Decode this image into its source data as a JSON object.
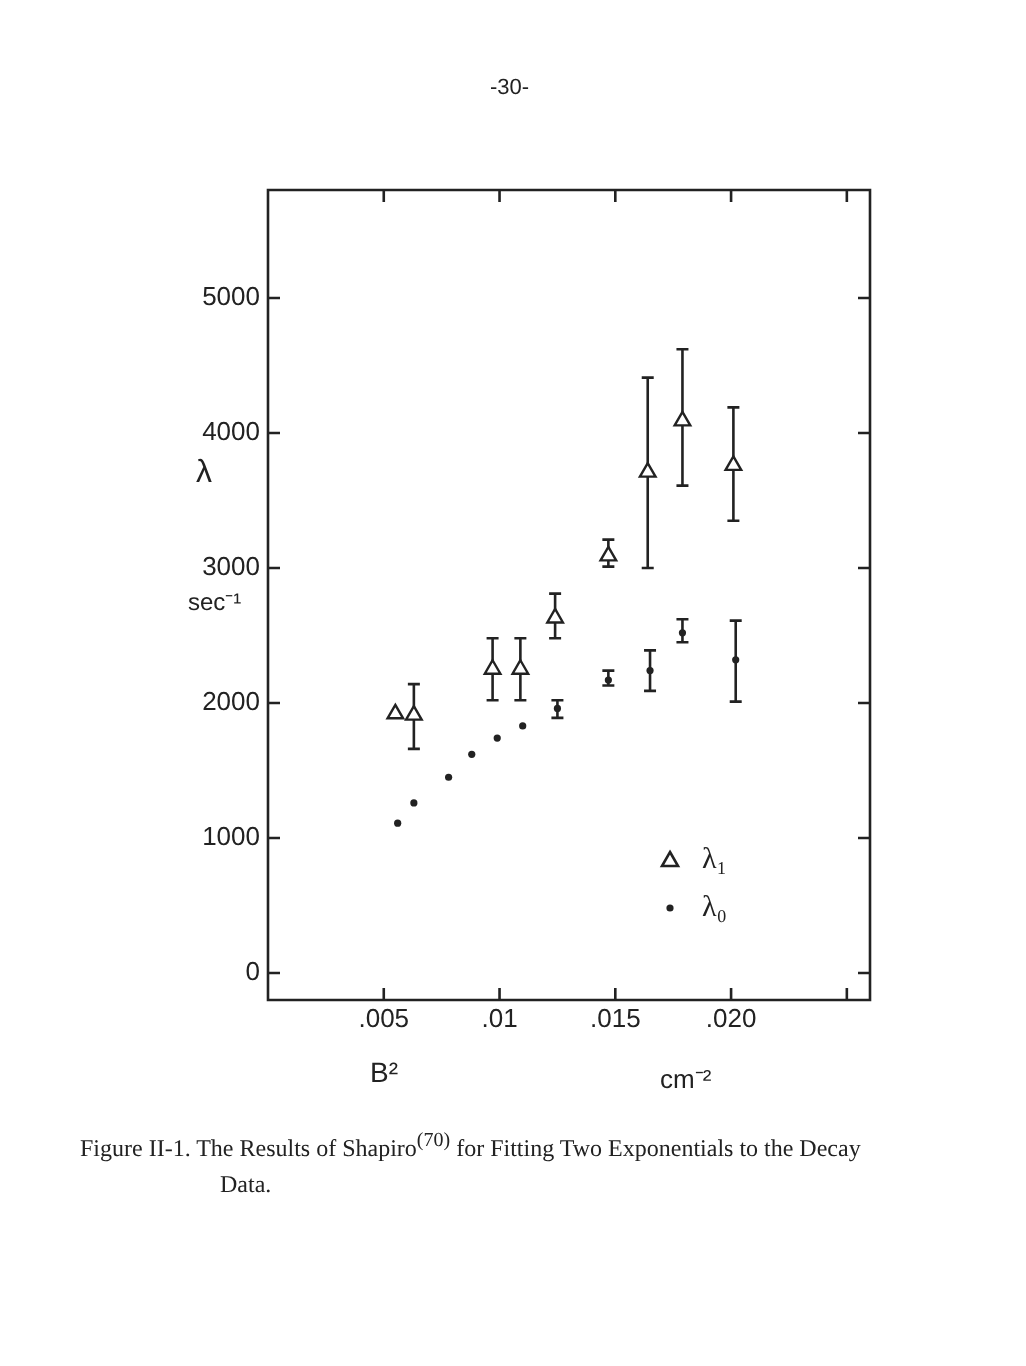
{
  "chart_data": {
    "type": "scatter",
    "xlabel": "B²",
    "ylabel": "λ",
    "annotations": [
      "-30-",
      "sec⁻¹",
      "cm⁻²",
      "Figure II-1.  The Results of Shapiro$^{(70)}$ for Fitting Two Exponentials to the Decay Data."
    ],
    "xlim": [
      0,
      0.026
    ],
    "ylim": [
      -200,
      5800
    ],
    "xticks": [
      {
        "value": 0.005,
        "label": ".005"
      },
      {
        "value": 0.01,
        "label": ".01"
      },
      {
        "value": 0.015,
        "label": ".015"
      },
      {
        "value": 0.02,
        "label": ".020"
      },
      {
        "value": 0.025,
        "label": null
      }
    ],
    "yticks": [
      0,
      1000,
      2000,
      3000,
      4000,
      5000
    ],
    "grid": false,
    "legend": "bottom right",
    "series": [
      {
        "name": "λ₁",
        "color": "#222222",
        "marker": "triangle",
        "x": [
          0.0055,
          0.0063,
          0.0097,
          0.0109,
          0.0124,
          0.0147,
          0.0164,
          0.0179,
          0.0201
        ],
        "values": [
          1920,
          1910,
          2250,
          2250,
          2630,
          3090,
          3710,
          4090,
          3760
        ],
        "errors": [
          null,
          [
            1660,
            2140
          ],
          [
            2020,
            2480
          ],
          [
            2020,
            2480
          ],
          [
            2480,
            2810
          ],
          [
            3010,
            3210
          ],
          [
            3000,
            4410
          ],
          [
            3610,
            4620
          ],
          [
            3350,
            4190
          ]
        ]
      },
      {
        "name": "λ₀",
        "color": "#222222",
        "marker": "circle",
        "x": [
          0.0056,
          0.0063,
          0.0078,
          0.0088,
          0.0099,
          0.011,
          0.0125,
          0.0147,
          0.0165,
          0.0179,
          0.0202
        ],
        "values": [
          1110,
          1260,
          1450,
          1620,
          1740,
          1830,
          1960,
          2170,
          2240,
          2520,
          2320
        ],
        "errors": [
          null,
          null,
          null,
          null,
          null,
          null,
          [
            1890,
            2020
          ],
          [
            2130,
            2240
          ],
          [
            2090,
            2390
          ],
          [
            2450,
            2620
          ],
          [
            2010,
            2610
          ]
        ]
      }
    ]
  }
}
